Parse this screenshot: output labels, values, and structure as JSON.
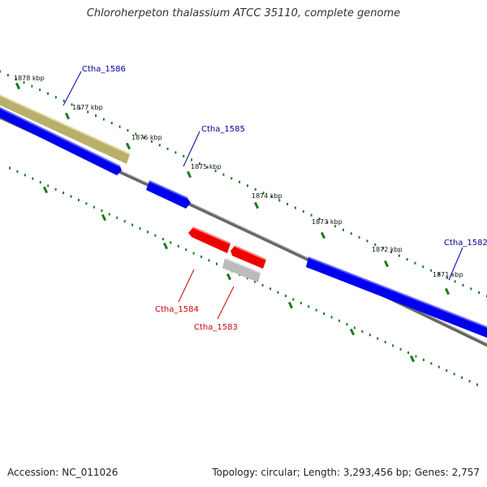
{
  "title": "Chloroherpeton thalassium ATCC 35110, complete genome",
  "footer": {
    "accession": "Accession: NC_011026",
    "summary": "Topology: circular; Length: 3,293,456 bp; Genes: 2,757"
  },
  "colors": {
    "backbone": "#888888",
    "tick": "#1a7a1a",
    "forward_gene": "#0000ee",
    "reverse_gene": "#ee0000",
    "highlight_gene": "#b8b06a",
    "pseudo_gene": "#bbbbbb",
    "forward_label": "#000099",
    "reverse_label": "#cc0000"
  },
  "ticks": [
    {
      "label": "1878 kbp"
    },
    {
      "label": "1877 kbp"
    },
    {
      "label": "1876 kbp"
    },
    {
      "label": "1875 kbp"
    },
    {
      "label": "1874 kbp"
    },
    {
      "label": "1873 kbp"
    },
    {
      "label": "1872 kbp"
    },
    {
      "label": "1871 kbp"
    }
  ],
  "genes": [
    {
      "id": "Ctha_1586",
      "strand": "forward",
      "style": "highlight"
    },
    {
      "id": "Ctha_1585",
      "strand": "forward",
      "style": "forward"
    },
    {
      "id": "Ctha_1584",
      "strand": "reverse",
      "style": "reverse"
    },
    {
      "id": "Ctha_1583",
      "strand": "reverse",
      "style": "pseudo"
    },
    {
      "id": "Ctha_1582",
      "strand": "forward",
      "style": "forward"
    }
  ]
}
